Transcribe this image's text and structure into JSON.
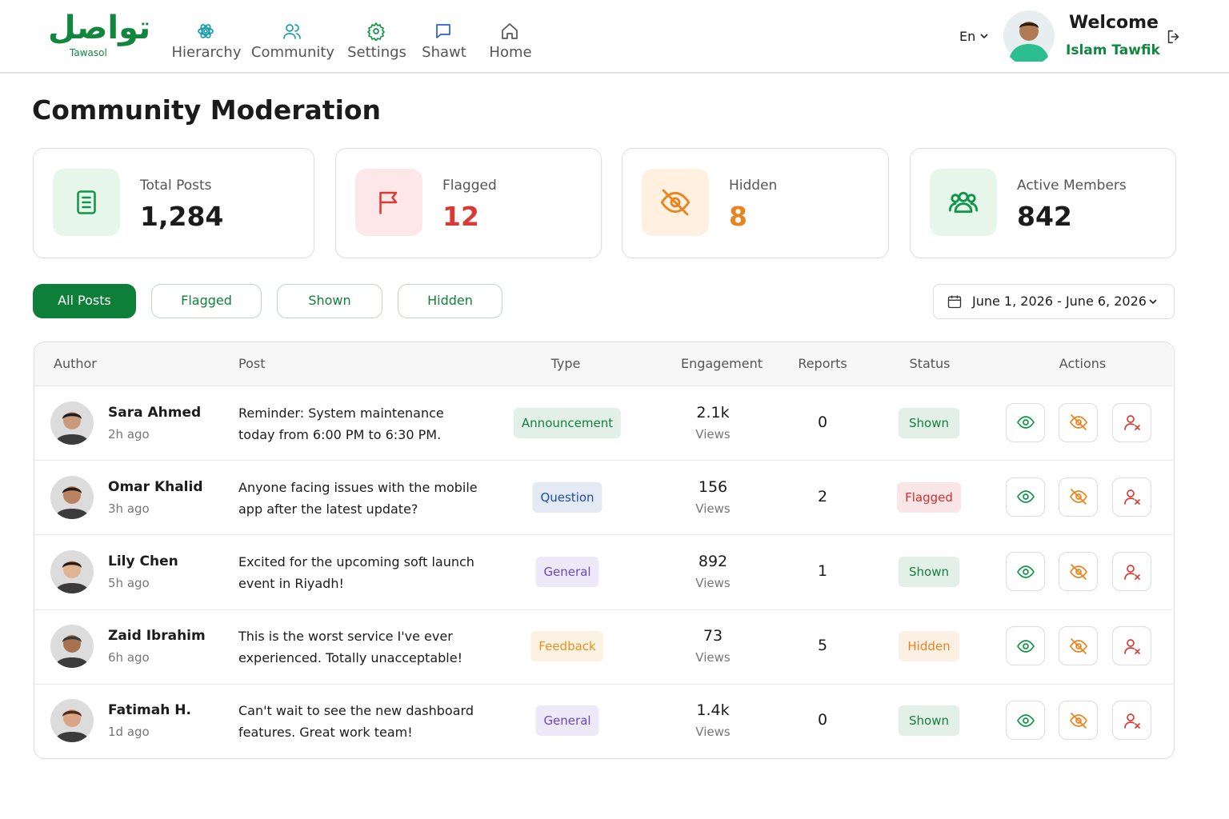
{
  "header": {
    "logo": "تواصل",
    "logo_caption": "Tawasol",
    "nav": [
      "Hierarchy",
      "Community",
      "Settings",
      "Shawt",
      "Home"
    ],
    "language": "En",
    "greeting": "Welcome",
    "user_name": "Islam Tawfik"
  },
  "page_title": "Community Moderation",
  "stats": [
    {
      "label": "Total Posts",
      "value": "1,284",
      "color": "#1b1b1b"
    },
    {
      "label": "Flagged",
      "value": "12",
      "color": "#d83a34"
    },
    {
      "label": "Hidden",
      "value": "8",
      "color": "#e8841f"
    },
    {
      "label": "Active Members",
      "value": "842",
      "color": "#1b1b1b"
    }
  ],
  "filters": [
    "All Posts",
    "Flagged",
    "Shown",
    "Hidden"
  ],
  "date_range": "June 1, 2026 - June 6, 2026",
  "table": {
    "columns": [
      "Author",
      "Post",
      "Type",
      "Engagement",
      "Reports",
      "Status",
      "Actions"
    ],
    "rows": [
      {
        "author": "Sara Ahmed",
        "time": "2h ago",
        "post": "Reminder: System maintenance today from 6:00 PM to 6:30 PM.",
        "type": "Announcement",
        "type_color": "#15803d",
        "engagement": "2.1k",
        "engagement_unit": "Views",
        "reports": 0,
        "status": "Shown",
        "status_color": "#15803d"
      },
      {
        "author": "Omar Khalid",
        "time": "3h ago",
        "post": "Anyone facing issues with the mobile app after the latest update?",
        "type": "Question",
        "type_color": "#1e4fa3",
        "engagement": "156",
        "engagement_unit": "Views",
        "reports": 2,
        "status": "Flagged",
        "status_color": "#d32f2f"
      },
      {
        "author": "Lily Chen",
        "time": "5h ago",
        "post": "Excited for the upcoming soft launch event in Riyadh!",
        "type": "General",
        "type_color": "#6d46c2",
        "engagement": "892",
        "engagement_unit": "Views",
        "reports": 1,
        "status": "Shown",
        "status_color": "#15803d"
      },
      {
        "author": "Zaid Ibrahim",
        "time": "6h ago",
        "post": "This is the worst service I've ever experienced. Totally unacceptable!",
        "type": "Feedback",
        "type_color": "#e8901f",
        "engagement": "73",
        "engagement_unit": "Views",
        "reports": 5,
        "status": "Hidden",
        "status_color": "#e8841f"
      },
      {
        "author": "Fatimah H.",
        "time": "1d ago",
        "post": "Can't wait to see the new dashboard features. Great work team!",
        "type": "General",
        "type_color": "#6d46c2",
        "engagement": "1.4k",
        "engagement_unit": "Views",
        "reports": 0,
        "status": "Shown",
        "status_color": "#15803d"
      }
    ]
  }
}
